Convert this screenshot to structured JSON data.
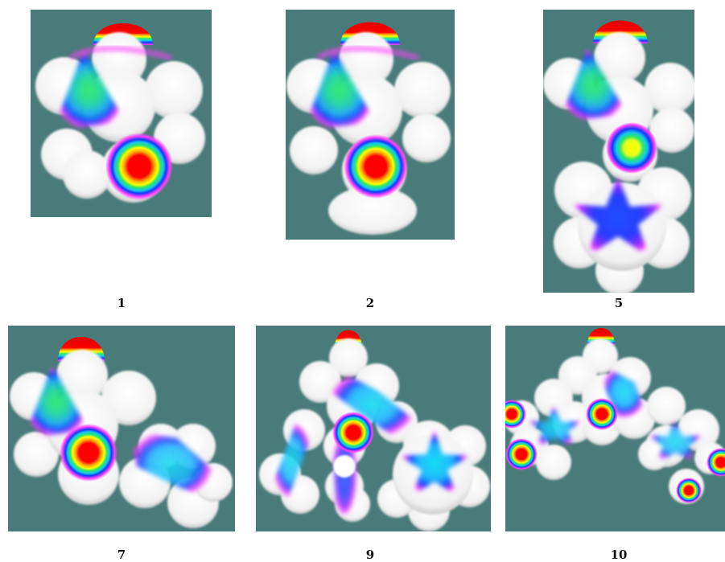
{
  "colors": {
    "background": "#487b79",
    "surface": "#ffffff",
    "esp_negative": "#ff0000",
    "esp_mid": "#2ee86a",
    "esp_cyan": "#16d6e6",
    "esp_blue": "#1338ff",
    "esp_magenta": "#ff40ff"
  },
  "panels": [
    {
      "label": "1"
    },
    {
      "label": "2"
    },
    {
      "label": "5"
    },
    {
      "label": "7"
    },
    {
      "label": "9"
    },
    {
      "label": "10"
    }
  ]
}
